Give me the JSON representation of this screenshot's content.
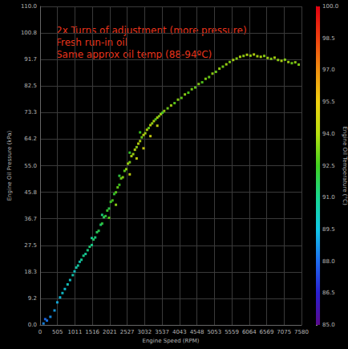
{
  "chart_data": {
    "type": "scatter",
    "annotations": [
      "2x Turns of adjustment (more pressure)",
      "Fresh run-in oil",
      "Same approx oil temp (88-94ºC)"
    ],
    "x_label": "Engine Speed (RPM)",
    "y_label": "Engine Oil Pressure (kPa)",
    "x": [
      100,
      150,
      200,
      300,
      420,
      500,
      580,
      650,
      720,
      800,
      870,
      950,
      1000,
      1050,
      1100,
      1150,
      1200,
      1260,
      1320,
      1380,
      1440,
      1500,
      1500,
      1550,
      1600,
      1650,
      1700,
      1760,
      1800,
      1800,
      1850,
      1900,
      1950,
      2000,
      2000,
      2050,
      2100,
      2150,
      2200,
      2200,
      2250,
      2300,
      2300,
      2350,
      2400,
      2450,
      2500,
      2550,
      2600,
      2600,
      2600,
      2650,
      2700,
      2750,
      2800,
      2800,
      2850,
      2900,
      2900,
      2950,
      3000,
      3000,
      3050,
      3100,
      3150,
      3200,
      3200,
      3250,
      3300,
      3350,
      3400,
      3400,
      3450,
      3500,
      3550,
      3600,
      3700,
      3800,
      3900,
      4000,
      4100,
      4200,
      4300,
      4400,
      4500,
      4600,
      4700,
      4800,
      4900,
      5000,
      5100,
      5200,
      5300,
      5400,
      5500,
      5600,
      5700,
      5800,
      5900,
      6000,
      6100,
      6200,
      6300,
      6400,
      6500,
      6600,
      6700,
      6800,
      6900,
      7000,
      7100,
      7200,
      7300,
      7400,
      7500
    ],
    "values": [
      0.5,
      2.0,
      1.5,
      2.8,
      5.0,
      7.8,
      9.5,
      11.0,
      12.4,
      14.0,
      15.5,
      17.2,
      18.5,
      19.8,
      20.5,
      21.8,
      22.5,
      23.9,
      24.5,
      25.8,
      27.0,
      27.6,
      30.0,
      29.5,
      30.2,
      32.0,
      32.5,
      34.6,
      35.0,
      38.0,
      37.2,
      37.6,
      39.5,
      40.2,
      37.0,
      42.5,
      43.0,
      45.2,
      45.8,
      41.5,
      47.5,
      48.4,
      51.5,
      50.6,
      51.0,
      53.2,
      53.8,
      55.7,
      56.2,
      52.0,
      59.5,
      58.3,
      59.0,
      60.5,
      61.4,
      57.5,
      62.6,
      63.5,
      66.5,
      64.8,
      65.6,
      61.0,
      66.2,
      67.4,
      68.0,
      69.0,
      65.2,
      69.6,
      70.4,
      71.0,
      71.6,
      68.8,
      72.1,
      72.8,
      73.3,
      73.9,
      74.8,
      75.8,
      76.6,
      77.8,
      78.4,
      79.6,
      80.2,
      81.4,
      82.0,
      83.2,
      83.8,
      85.0,
      85.6,
      86.8,
      87.4,
      88.5,
      89.2,
      90.0,
      90.8,
      91.5,
      92.0,
      92.6,
      92.9,
      93.3,
      93.0,
      93.4,
      92.8,
      92.6,
      92.9,
      92.2,
      91.9,
      92.3,
      91.5,
      91.2,
      91.6,
      90.8,
      90.4,
      90.7,
      89.9
    ],
    "temperatures": [
      88.5,
      88.0,
      88.2,
      88.6,
      88.9,
      89.2,
      89.5,
      89.8,
      89.6,
      90.1,
      89.9,
      90.3,
      90.0,
      90.4,
      90.6,
      90.2,
      90.8,
      91.0,
      90.7,
      91.1,
      91.3,
      91.0,
      90.8,
      91.5,
      91.2,
      91.6,
      91.8,
      91.4,
      92.0,
      91.2,
      91.7,
      92.1,
      92.3,
      91.9,
      92.8,
      92.4,
      92.6,
      92.2,
      92.8,
      93.5,
      93.0,
      92.5,
      92.0,
      93.2,
      93.4,
      92.9,
      93.6,
      93.8,
      93.3,
      94.5,
      92.3,
      94.0,
      93.7,
      94.2,
      93.5,
      94.6,
      94.3,
      94.0,
      92.5,
      93.1,
      94.4,
      94.8,
      93.8,
      94.2,
      93.0,
      94.5,
      94.7,
      93.6,
      94.1,
      92.8,
      94.0,
      94.5,
      93.4,
      93.9,
      92.6,
      93.7,
      93.2,
      93.8,
      92.9,
      93.5,
      93.0,
      93.6,
      92.7,
      93.3,
      93.0,
      93.5,
      92.8,
      93.4,
      93.0,
      93.6,
      93.1,
      93.7,
      93.2,
      93.8,
      93.4,
      93.9,
      93.5,
      94.0,
      93.6,
      94.1,
      93.7,
      94.2,
      93.9,
      94.0,
      93.5,
      93.8,
      93.4,
      93.9,
      93.6,
      94.0,
      93.5,
      93.8,
      93.2,
      93.6,
      93.4
    ],
    "xlim": [
      0,
      7580
    ],
    "xticks": [
      0,
      505,
      1011,
      1516,
      2021,
      2527,
      3032,
      3537,
      4043,
      4548,
      5053,
      5559,
      6064,
      6569,
      7075,
      7580
    ],
    "ylim": [
      0,
      110
    ],
    "yticks": [
      {
        "value": 0,
        "label": "0.0"
      },
      9.2,
      18.3,
      27.5,
      36.7,
      45.8,
      {
        "value": 55,
        "label": "55.0"
      },
      64.2,
      73.3,
      82.5,
      91.7,
      100.8,
      {
        "value": 110,
        "label": "110.0"
      }
    ],
    "grid": true,
    "colorbar": {
      "label": "Engine Oil Temperature (°C)",
      "range": [
        85,
        100
      ],
      "ticks": [
        {
          "value": 85,
          "label": "85.0"
        },
        86.5,
        {
          "value": 88,
          "label": "88.0"
        },
        89.5,
        {
          "value": 91,
          "label": "91.0"
        },
        92.5,
        {
          "value": 94,
          "label": "94.0"
        },
        95.5,
        {
          "value": 97,
          "label": "97.0"
        },
        98.5,
        {
          "value": 100,
          "label": "100.0"
        }
      ]
    }
  }
}
